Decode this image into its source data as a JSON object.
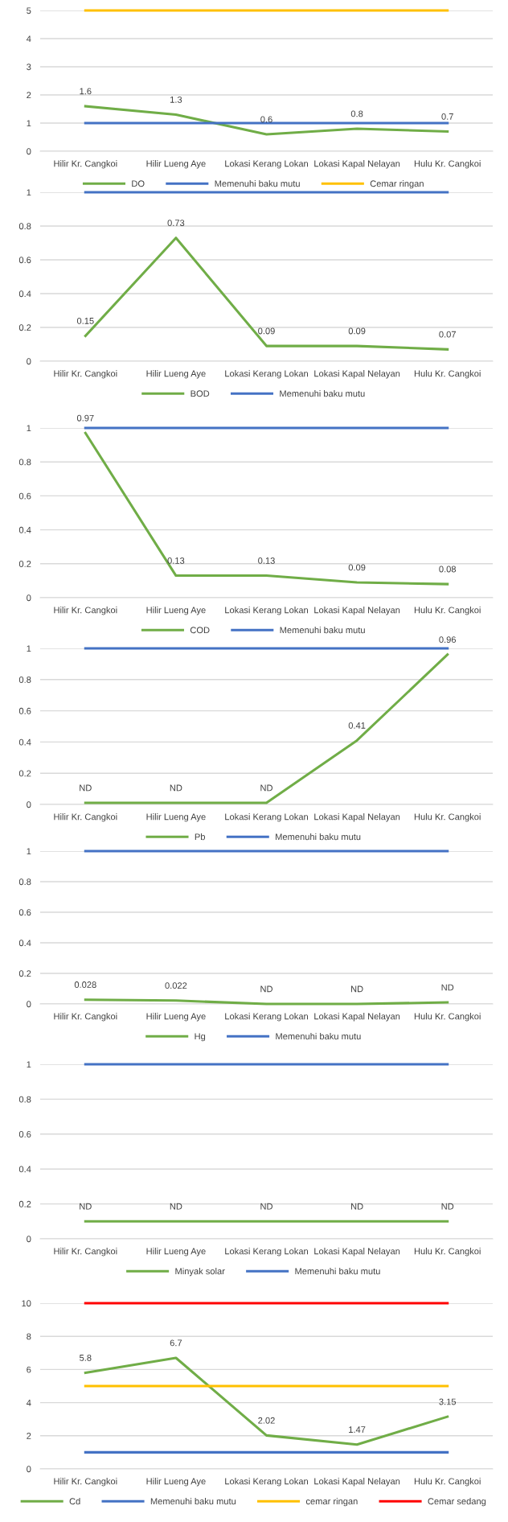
{
  "chart_data": [
    {
      "type": "line",
      "categories": [
        "Hilir Kr. Cangkoi",
        "Hilir Lueng Aye",
        "Lokasi Kerang Lokan",
        "Lokasi Kapal Nelayan",
        "Hulu Kr. Cangkoi"
      ],
      "ylim": [
        0,
        5
      ],
      "yticks": [
        0,
        1,
        2,
        3,
        4,
        5
      ],
      "grid": "y",
      "legend": "bottom",
      "series": [
        {
          "name": "DO",
          "color": "#70ad47",
          "values": [
            1.6,
            1.3,
            0.6,
            0.8,
            0.7
          ],
          "value_labels": [
            "1.6",
            "1.3",
            "0.6",
            "0.8",
            "0.7"
          ]
        },
        {
          "name": "Memenuhi baku mutu",
          "color": "#4472c4",
          "values": [
            1,
            1,
            1,
            1,
            1
          ]
        },
        {
          "name": "Cemar ringan",
          "color": "#ffc000",
          "values": [
            5,
            5,
            5,
            5,
            5
          ]
        }
      ]
    },
    {
      "type": "line",
      "categories": [
        "Hilir Kr. Cangkoi",
        "Hilir Lueng Aye",
        "Lokasi Kerang Lokan",
        "Lokasi Kapal Nelayan",
        "Hulu Kr. Cangkoi"
      ],
      "ylim": [
        0,
        1
      ],
      "yticks": [
        0,
        0.2,
        0.4,
        0.6,
        0.8,
        1
      ],
      "grid": "y",
      "legend": "bottom",
      "series": [
        {
          "name": "BOD",
          "color": "#70ad47",
          "values": [
            0.15,
            0.73,
            0.09,
            0.09,
            0.07
          ],
          "value_labels": [
            "0.15",
            "0.73",
            "0.09",
            "0.09",
            "0.07"
          ]
        },
        {
          "name": "Memenuhi baku mutu",
          "color": "#4472c4",
          "values": [
            1,
            1,
            1,
            1,
            1
          ]
        }
      ]
    },
    {
      "type": "line",
      "categories": [
        "Hilir Kr. Cangkoi",
        "Hilir Lueng Aye",
        "Lokasi Kerang Lokan",
        "Lokasi Kapal Nelayan",
        "Hulu Kr. Cangkoi"
      ],
      "ylim": [
        0,
        1
      ],
      "yticks": [
        0,
        0.2,
        0.4,
        0.6,
        0.8,
        1
      ],
      "grid": "y",
      "legend": "bottom",
      "series": [
        {
          "name": "COD",
          "color": "#70ad47",
          "values": [
            0.97,
            0.13,
            0.13,
            0.09,
            0.08
          ],
          "value_labels": [
            "0.97",
            "0.13",
            "0.13",
            "0.09",
            "0.08"
          ]
        },
        {
          "name": "Memenuhi baku mutu",
          "color": "#4472c4",
          "values": [
            1,
            1,
            1,
            1,
            1
          ]
        }
      ]
    },
    {
      "type": "line",
      "categories": [
        "Hilir Kr. Cangkoi",
        "Hilir Lueng Aye",
        "Lokasi Kerang Lokan",
        "Lokasi Kapal Nelayan",
        "Hulu Kr. Cangkoi"
      ],
      "ylim": [
        0,
        1
      ],
      "yticks": [
        0,
        0.2,
        0.4,
        0.6,
        0.8,
        1
      ],
      "grid": "y",
      "legend": "bottom",
      "series": [
        {
          "name": "Pb",
          "color": "#70ad47",
          "values": [
            0.01,
            0.01,
            0.01,
            0.41,
            0.96
          ],
          "value_labels": [
            "ND",
            "ND",
            "ND",
            "0.41",
            "0.96"
          ]
        },
        {
          "name": "Memenuhi baku mutu",
          "color": "#4472c4",
          "values": [
            1,
            1,
            1,
            1,
            1
          ]
        }
      ]
    },
    {
      "type": "line",
      "categories": [
        "Hilir Kr. Cangkoi",
        "Hilir Lueng Aye",
        "Lokasi Kerang Lokan",
        "Lokasi Kapal Nelayan",
        "Hulu Kr. Cangkoi"
      ],
      "ylim": [
        0,
        1
      ],
      "yticks": [
        0,
        0.2,
        0.4,
        0.6,
        0.8,
        1
      ],
      "grid": "y",
      "legend": "bottom",
      "series": [
        {
          "name": "Hg",
          "color": "#70ad47",
          "values": [
            0.028,
            0.022,
            0,
            0,
            0.01
          ],
          "value_labels": [
            "0.028",
            "0.022",
            "ND",
            "ND",
            "ND"
          ]
        },
        {
          "name": "Memenuhi baku mutu",
          "color": "#4472c4",
          "values": [
            1,
            1,
            1,
            1,
            1
          ]
        }
      ]
    },
    {
      "type": "line",
      "categories": [
        "Hilir Kr. Cangkoi",
        "Hilir Lueng Aye",
        "Lokasi Kerang Lokan",
        "Lokasi Kapal Nelayan",
        "Hulu Kr. Cangkoi"
      ],
      "ylim": [
        0,
        1
      ],
      "yticks": [
        0,
        0.2,
        0.4,
        0.6,
        0.8,
        1
      ],
      "grid": "y",
      "legend": "bottom",
      "series": [
        {
          "name": "Minyak solar",
          "color": "#70ad47",
          "values": [
            0.1,
            0.1,
            0.1,
            0.1,
            0.1
          ],
          "value_labels": [
            "ND",
            "ND",
            "ND",
            "ND",
            "ND"
          ]
        },
        {
          "name": "Memenuhi baku mutu",
          "color": "#4472c4",
          "values": [
            1,
            1,
            1,
            1,
            1
          ]
        }
      ]
    },
    {
      "type": "line",
      "categories": [
        "Hilir Kr. Cangkoi",
        "Hilir Lueng Aye",
        "Lokasi Kerang Lokan",
        "Lokasi Kapal Nelayan",
        "Hulu Kr. Cangkoi"
      ],
      "ylim": [
        0,
        10
      ],
      "yticks": [
        0,
        2,
        4,
        6,
        8,
        10
      ],
      "grid": "y",
      "legend": "bottom",
      "series": [
        {
          "name": "Cd",
          "color": "#70ad47",
          "values": [
            5.8,
            6.7,
            2.02,
            1.47,
            3.15
          ],
          "value_labels": [
            "5.8",
            "6.7",
            "2.02",
            "1.47",
            "3.15"
          ]
        },
        {
          "name": "Memenuhi baku mutu",
          "color": "#4472c4",
          "values": [
            1,
            1,
            1,
            1,
            1
          ]
        },
        {
          "name": "cemar ringan",
          "color": "#ffc000",
          "values": [
            5,
            5,
            5,
            5,
            5
          ]
        },
        {
          "name": "Cemar sedang",
          "color": "#ff0000",
          "values": [
            10,
            10,
            10,
            10,
            10
          ]
        }
      ]
    }
  ]
}
